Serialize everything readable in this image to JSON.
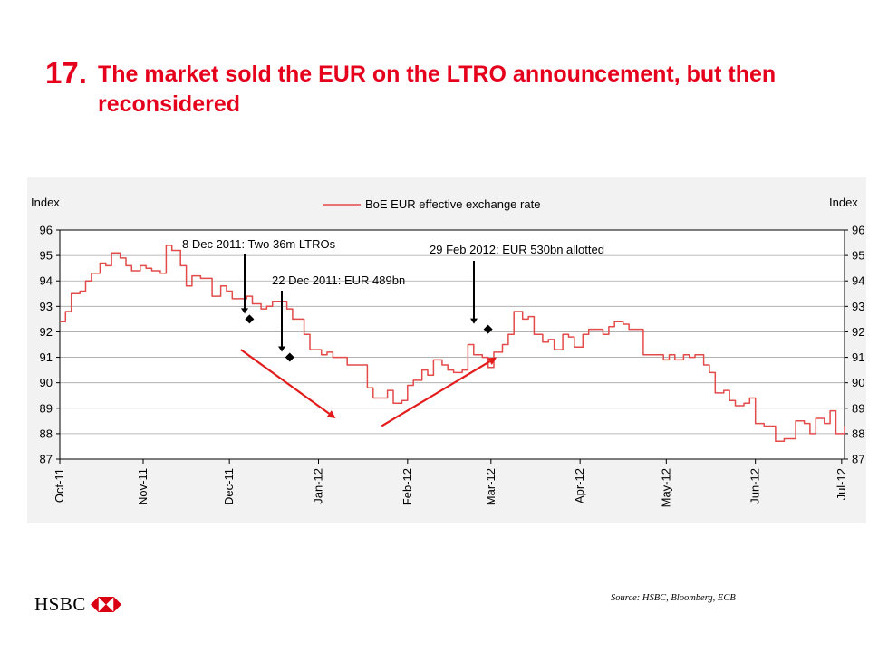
{
  "slide": {
    "number": "17.",
    "title": "The market sold the EUR on the LTRO announcement, but then reconsidered"
  },
  "source_note": "Source: HSBC, Bloomberg, ECB",
  "logo": {
    "text": "HSBC",
    "icon": "hsbc-hexagon-logo"
  },
  "colors": {
    "title": "#e5001c",
    "series": "#e34a4a",
    "arrow": "#e31b1b",
    "marker": "#000000"
  },
  "chart_data": {
    "type": "line",
    "ylabel_left": "Index",
    "ylabel_right": "Index",
    "ylim": [
      87,
      96
    ],
    "yticks": [
      96,
      95,
      94,
      93,
      92,
      91,
      90,
      89,
      88,
      87
    ],
    "xlim": [
      "2011-10-03",
      "2012-07-02"
    ],
    "xticks": [
      "Oct-11",
      "Nov-11",
      "Dec-11",
      "Jan-12",
      "Feb-12",
      "Mar-12",
      "Apr-12",
      "May-12",
      "Jun-12",
      "Jul-12"
    ],
    "grid": true,
    "legend": "top-center",
    "series": [
      {
        "name": "BoE EUR effective exchange rate",
        "points": [
          [
            "2011-10-03",
            92.4
          ],
          [
            "2011-10-05",
            92.8
          ],
          [
            "2011-10-07",
            93.5
          ],
          [
            "2011-10-10",
            93.6
          ],
          [
            "2011-10-12",
            94.0
          ],
          [
            "2011-10-14",
            94.3
          ],
          [
            "2011-10-17",
            94.7
          ],
          [
            "2011-10-19",
            94.6
          ],
          [
            "2011-10-21",
            95.1
          ],
          [
            "2011-10-24",
            94.9
          ],
          [
            "2011-10-26",
            94.6
          ],
          [
            "2011-10-28",
            94.4
          ],
          [
            "2011-10-31",
            94.6
          ],
          [
            "2011-11-02",
            94.5
          ],
          [
            "2011-11-04",
            94.4
          ],
          [
            "2011-11-07",
            94.3
          ],
          [
            "2011-11-09",
            95.4
          ],
          [
            "2011-11-11",
            95.2
          ],
          [
            "2011-11-14",
            94.6
          ],
          [
            "2011-11-16",
            93.8
          ],
          [
            "2011-11-18",
            94.2
          ],
          [
            "2011-11-21",
            94.1
          ],
          [
            "2011-11-23",
            94.1
          ],
          [
            "2011-11-25",
            93.4
          ],
          [
            "2011-11-28",
            93.8
          ],
          [
            "2011-11-30",
            93.6
          ],
          [
            "2011-12-02",
            93.3
          ],
          [
            "2011-12-05",
            93.3
          ],
          [
            "2011-12-07",
            93.4
          ],
          [
            "2011-12-09",
            93.1
          ],
          [
            "2011-12-12",
            92.9
          ],
          [
            "2011-12-14",
            93.0
          ],
          [
            "2011-12-16",
            93.2
          ],
          [
            "2011-12-19",
            93.2
          ],
          [
            "2011-12-21",
            92.9
          ],
          [
            "2011-12-23",
            92.5
          ],
          [
            "2011-12-27",
            91.9
          ],
          [
            "2011-12-29",
            91.3
          ],
          [
            "2012-01-02",
            91.1
          ],
          [
            "2012-01-04",
            91.2
          ],
          [
            "2012-01-06",
            91.0
          ],
          [
            "2012-01-09",
            91.0
          ],
          [
            "2012-01-11",
            90.7
          ],
          [
            "2012-01-13",
            90.7
          ],
          [
            "2012-01-16",
            90.7
          ],
          [
            "2012-01-18",
            89.8
          ],
          [
            "2012-01-20",
            89.4
          ],
          [
            "2012-01-23",
            89.4
          ],
          [
            "2012-01-25",
            89.7
          ],
          [
            "2012-01-27",
            89.2
          ],
          [
            "2012-01-30",
            89.3
          ],
          [
            "2012-02-01",
            89.9
          ],
          [
            "2012-02-03",
            90.1
          ],
          [
            "2012-02-06",
            90.5
          ],
          [
            "2012-02-08",
            90.3
          ],
          [
            "2012-02-10",
            90.9
          ],
          [
            "2012-02-13",
            90.7
          ],
          [
            "2012-02-15",
            90.5
          ],
          [
            "2012-02-17",
            90.4
          ],
          [
            "2012-02-20",
            90.5
          ],
          [
            "2012-02-22",
            91.5
          ],
          [
            "2012-02-24",
            91.1
          ],
          [
            "2012-02-27",
            91.0
          ],
          [
            "2012-02-29",
            90.6
          ],
          [
            "2012-03-02",
            91.2
          ],
          [
            "2012-03-05",
            91.5
          ],
          [
            "2012-03-07",
            91.9
          ],
          [
            "2012-03-09",
            92.8
          ],
          [
            "2012-03-12",
            92.5
          ],
          [
            "2012-03-14",
            92.6
          ],
          [
            "2012-03-16",
            91.9
          ],
          [
            "2012-03-19",
            91.6
          ],
          [
            "2012-03-21",
            91.7
          ],
          [
            "2012-03-23",
            91.3
          ],
          [
            "2012-03-26",
            91.9
          ],
          [
            "2012-03-28",
            91.8
          ],
          [
            "2012-03-30",
            91.4
          ],
          [
            "2012-04-02",
            91.9
          ],
          [
            "2012-04-04",
            92.1
          ],
          [
            "2012-04-06",
            92.1
          ],
          [
            "2012-04-09",
            91.9
          ],
          [
            "2012-04-11",
            92.2
          ],
          [
            "2012-04-13",
            92.4
          ],
          [
            "2012-04-16",
            92.3
          ],
          [
            "2012-04-18",
            92.1
          ],
          [
            "2012-04-20",
            92.1
          ],
          [
            "2012-04-23",
            91.1
          ],
          [
            "2012-04-25",
            91.1
          ],
          [
            "2012-04-27",
            91.1
          ],
          [
            "2012-04-30",
            90.9
          ],
          [
            "2012-05-02",
            91.1
          ],
          [
            "2012-05-04",
            90.9
          ],
          [
            "2012-05-07",
            91.1
          ],
          [
            "2012-05-09",
            91.0
          ],
          [
            "2012-05-11",
            91.1
          ],
          [
            "2012-05-14",
            90.7
          ],
          [
            "2012-05-16",
            90.4
          ],
          [
            "2012-05-18",
            89.6
          ],
          [
            "2012-05-21",
            89.7
          ],
          [
            "2012-05-23",
            89.3
          ],
          [
            "2012-05-25",
            89.1
          ],
          [
            "2012-05-28",
            89.2
          ],
          [
            "2012-05-30",
            89.4
          ],
          [
            "2012-06-01",
            88.4
          ],
          [
            "2012-06-04",
            88.3
          ],
          [
            "2012-06-06",
            88.3
          ],
          [
            "2012-06-08",
            87.7
          ],
          [
            "2012-06-11",
            87.8
          ],
          [
            "2012-06-13",
            87.8
          ],
          [
            "2012-06-15",
            88.5
          ],
          [
            "2012-06-18",
            88.4
          ],
          [
            "2012-06-20",
            88.0
          ],
          [
            "2012-06-22",
            88.6
          ],
          [
            "2012-06-25",
            88.4
          ],
          [
            "2012-06-27",
            88.9
          ],
          [
            "2012-06-29",
            88.0
          ],
          [
            "2012-07-02",
            88.3
          ]
        ]
      }
    ],
    "annotations": [
      {
        "label": "8 Dec 2011: Two 36m LTROs",
        "date": "2011-12-08",
        "value": 92.5
      },
      {
        "label": "22 Dec 2011: EUR 489bn",
        "date": "2011-12-22",
        "value": 91.0
      },
      {
        "label": "29 Feb 2012: EUR 530bn allotted",
        "date": "2012-02-29",
        "value": 92.1
      }
    ],
    "trend_arrows": [
      {
        "from": [
          "2011-12-05",
          91.3
        ],
        "to": [
          "2012-01-07",
          88.6
        ]
      },
      {
        "from": [
          "2012-01-23",
          88.3
        ],
        "to": [
          "2012-03-03",
          91.0
        ]
      }
    ]
  }
}
